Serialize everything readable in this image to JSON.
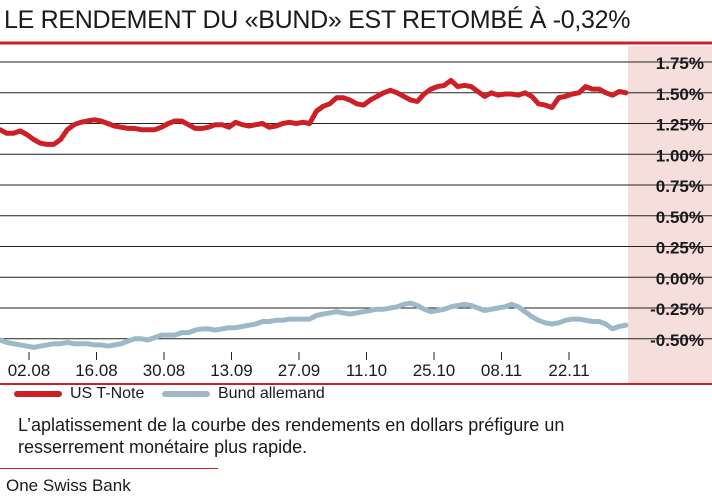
{
  "chart_data": {
    "type": "line",
    "title": "LE RENDEMENT DU «BUND» EST RETOMBÉ À -0,32%",
    "xlabel": "",
    "ylabel": "",
    "x_ticks": [
      "02.08",
      "16.08",
      "30.08",
      "13.09",
      "27.09",
      "11.10",
      "25.10",
      "08.11",
      "22.11"
    ],
    "y_ticks": [
      "1.75%",
      "1.50%",
      "1.25%",
      "1.00%",
      "0.75%",
      "0.50%",
      "0.25%",
      "0.00%",
      "-0.25%",
      "-0.50%"
    ],
    "ylim": [
      -0.6,
      1.85
    ],
    "grid": true,
    "legend_position": "bottom",
    "series": [
      {
        "name": "US T-Note",
        "color": "#cc1f26",
        "values": [
          1.2,
          1.17,
          1.17,
          1.19,
          1.16,
          1.12,
          1.09,
          1.08,
          1.08,
          1.12,
          1.2,
          1.24,
          1.26,
          1.27,
          1.28,
          1.27,
          1.25,
          1.23,
          1.22,
          1.21,
          1.21,
          1.2,
          1.2,
          1.2,
          1.22,
          1.25,
          1.27,
          1.27,
          1.24,
          1.21,
          1.21,
          1.22,
          1.24,
          1.24,
          1.22,
          1.26,
          1.24,
          1.23,
          1.24,
          1.25,
          1.22,
          1.23,
          1.25,
          1.26,
          1.25,
          1.26,
          1.25,
          1.35,
          1.39,
          1.41,
          1.46,
          1.46,
          1.44,
          1.41,
          1.4,
          1.44,
          1.47,
          1.5,
          1.52,
          1.5,
          1.47,
          1.44,
          1.43,
          1.49,
          1.53,
          1.55,
          1.56,
          1.6,
          1.55,
          1.56,
          1.55,
          1.51,
          1.47,
          1.5,
          1.48,
          1.49,
          1.49,
          1.48,
          1.5,
          1.47,
          1.41,
          1.4,
          1.38,
          1.46,
          1.47,
          1.49,
          1.5,
          1.55,
          1.53,
          1.53,
          1.5,
          1.48,
          1.51,
          1.5
        ]
      },
      {
        "name": "Bund allemand",
        "color": "#9db8c9",
        "values": [
          -0.51,
          -0.53,
          -0.54,
          -0.55,
          -0.56,
          -0.57,
          -0.56,
          -0.55,
          -0.54,
          -0.54,
          -0.53,
          -0.54,
          -0.54,
          -0.54,
          -0.55,
          -0.55,
          -0.56,
          -0.55,
          -0.54,
          -0.52,
          -0.5,
          -0.5,
          -0.51,
          -0.49,
          -0.47,
          -0.47,
          -0.47,
          -0.45,
          -0.45,
          -0.43,
          -0.42,
          -0.42,
          -0.43,
          -0.42,
          -0.41,
          -0.41,
          -0.4,
          -0.39,
          -0.38,
          -0.36,
          -0.36,
          -0.35,
          -0.35,
          -0.34,
          -0.34,
          -0.34,
          -0.34,
          -0.31,
          -0.3,
          -0.29,
          -0.28,
          -0.29,
          -0.3,
          -0.29,
          -0.28,
          -0.27,
          -0.26,
          -0.26,
          -0.25,
          -0.24,
          -0.22,
          -0.21,
          -0.23,
          -0.26,
          -0.28,
          -0.27,
          -0.26,
          -0.24,
          -0.23,
          -0.22,
          -0.23,
          -0.25,
          -0.27,
          -0.26,
          -0.25,
          -0.24,
          -0.22,
          -0.24,
          -0.28,
          -0.32,
          -0.35,
          -0.37,
          -0.38,
          -0.37,
          -0.35,
          -0.34,
          -0.34,
          -0.35,
          -0.36,
          -0.36,
          -0.38,
          -0.42,
          -0.4,
          -0.39
        ]
      }
    ]
  },
  "caption": "L’aplatissement de la courbe des rendements en dollars préfigure un resserrement monétaire plus rapide.",
  "source": "One Swiss Bank",
  "colors": {
    "accent": "#cc1f26",
    "axis_band": "#f6dedd",
    "grid": "#1a1a1a"
  }
}
